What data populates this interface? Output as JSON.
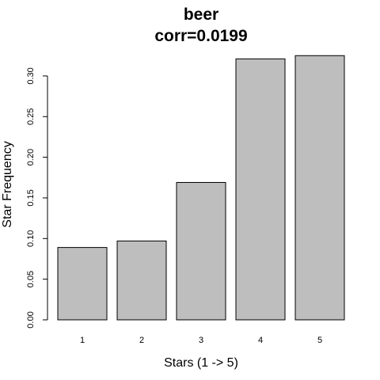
{
  "chart_data": {
    "type": "bar",
    "title": "beer",
    "subtitle": "corr=0.0199",
    "xlabel": "Stars (1 -> 5)",
    "ylabel": "Star Frequency",
    "categories": [
      "1",
      "2",
      "3",
      "4",
      "5"
    ],
    "values": [
      0.089,
      0.097,
      0.169,
      0.321,
      0.325
    ],
    "ylim": [
      0,
      0.335
    ],
    "yticks": [
      0.0,
      0.05,
      0.1,
      0.15,
      0.2,
      0.25,
      0.3
    ],
    "ytick_labels": [
      "0.00",
      "0.05",
      "0.10",
      "0.15",
      "0.20",
      "0.25",
      "0.30"
    ],
    "bar_color": "#bebebe",
    "grid": false
  }
}
